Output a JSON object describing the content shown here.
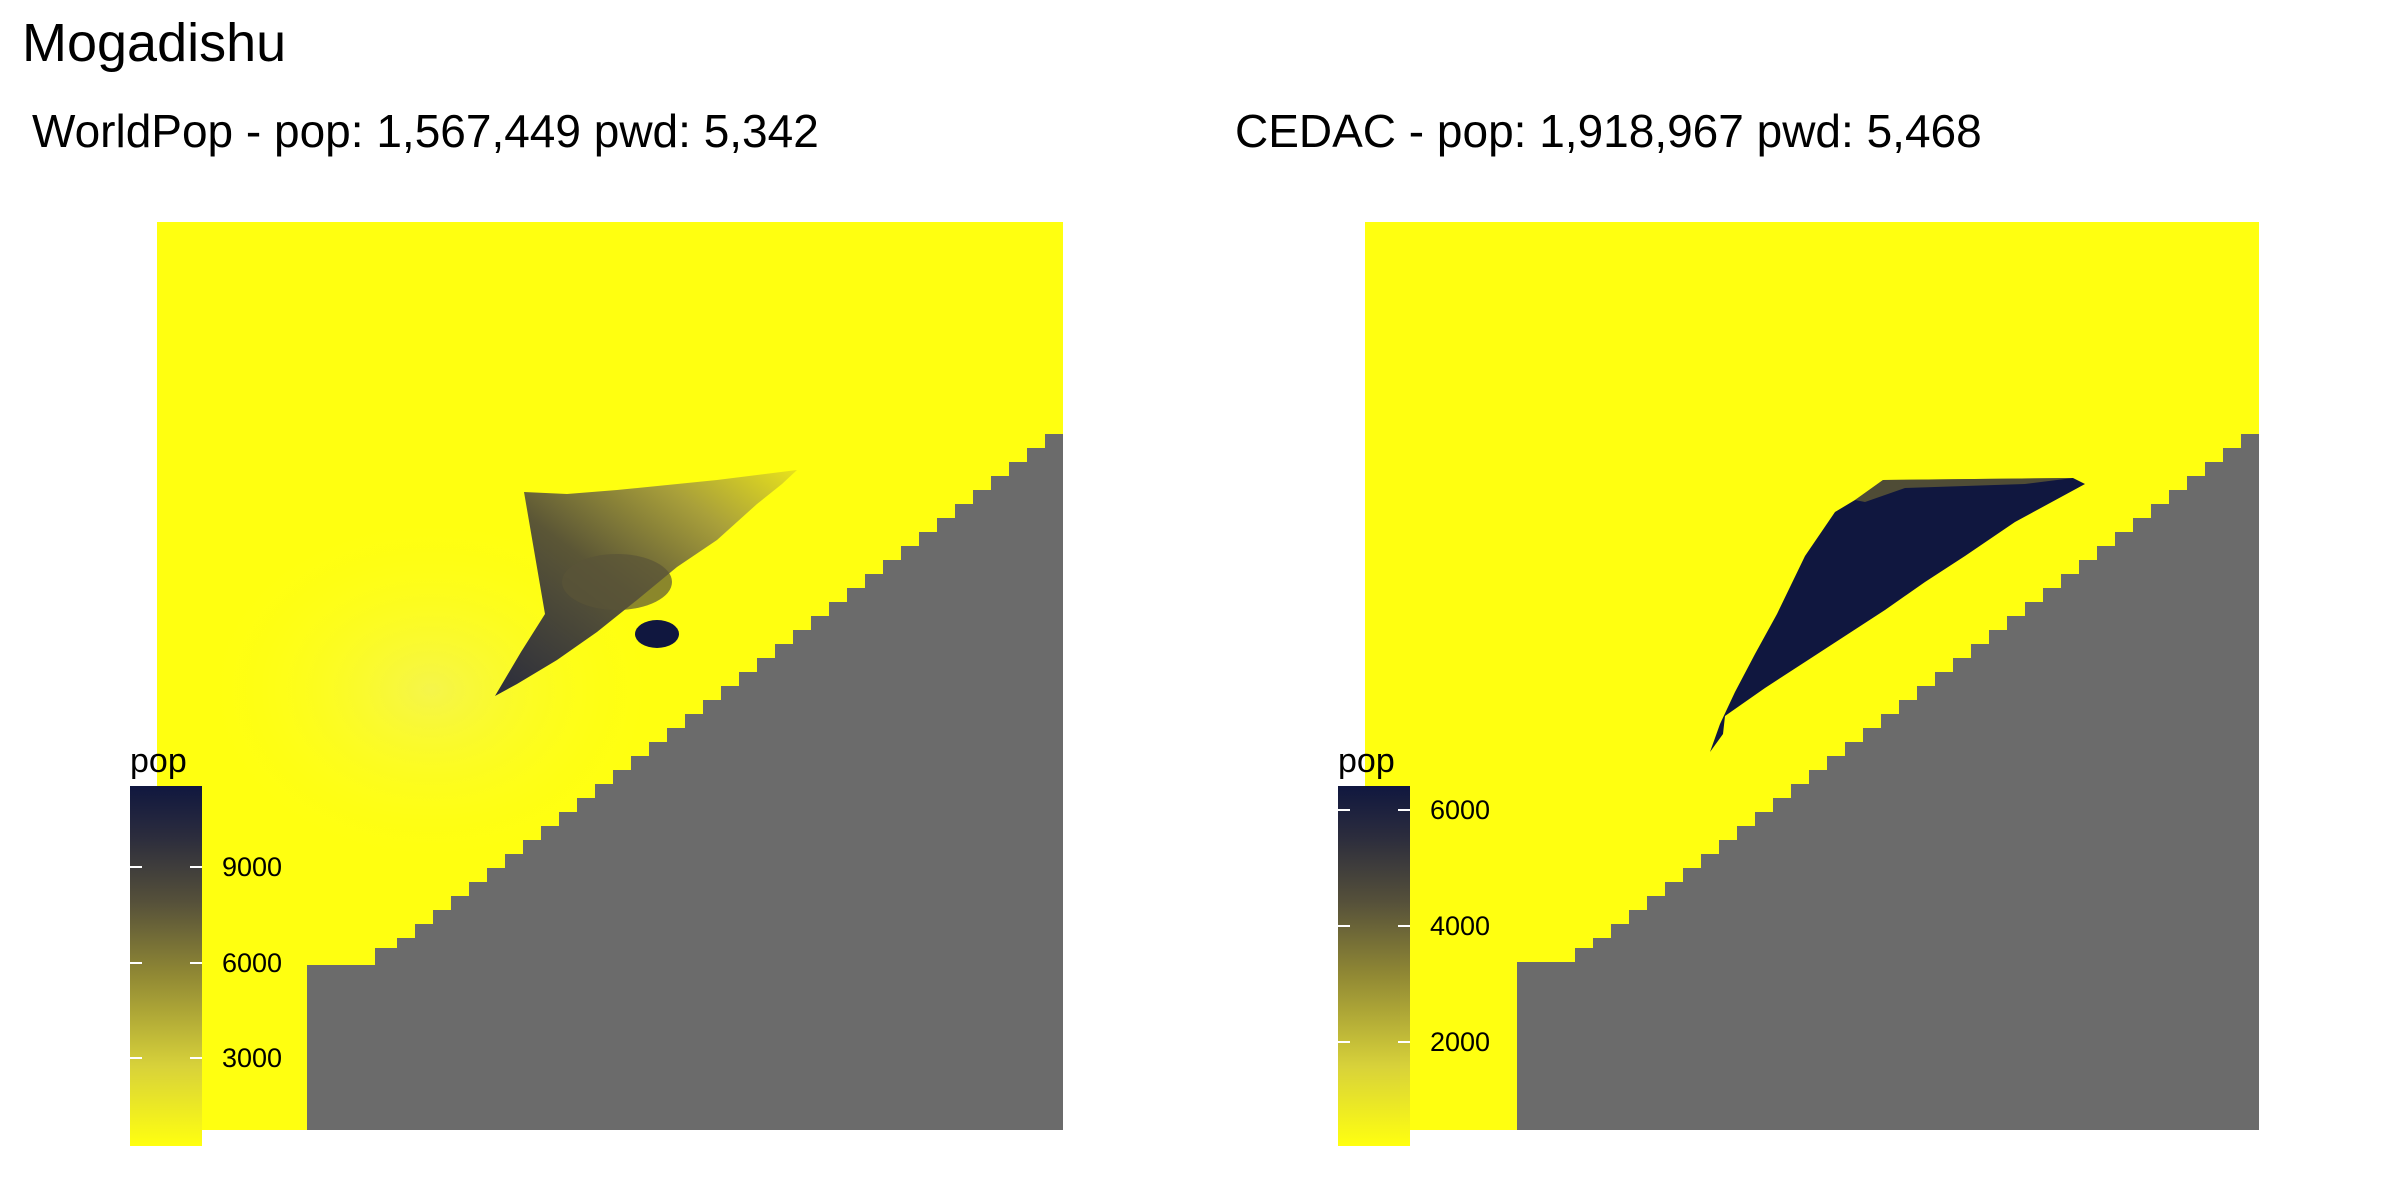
{
  "title": "Mogadishu",
  "panels": [
    {
      "title": "WorldPop - pop: 1,567,449 pwd: 5,342",
      "legend": {
        "title": "pop",
        "ticks": [
          "9000",
          "6000",
          "3000"
        ],
        "tick_values": [
          9000,
          6000,
          3000
        ],
        "range": [
          0,
          11300
        ]
      }
    },
    {
      "title": "CEDAC - pop: 1,918,967 pwd: 5,468",
      "legend": {
        "title": "pop",
        "ticks": [
          "6000",
          "4000",
          "2000"
        ],
        "tick_values": [
          6000,
          4000,
          2000
        ],
        "range": [
          0,
          6300
        ]
      }
    }
  ],
  "colors": {
    "low": "#ffff10",
    "mid": "#7a7030",
    "high": "#10173f",
    "no_data": "#6b6b6b",
    "background": "#ffffff"
  }
}
